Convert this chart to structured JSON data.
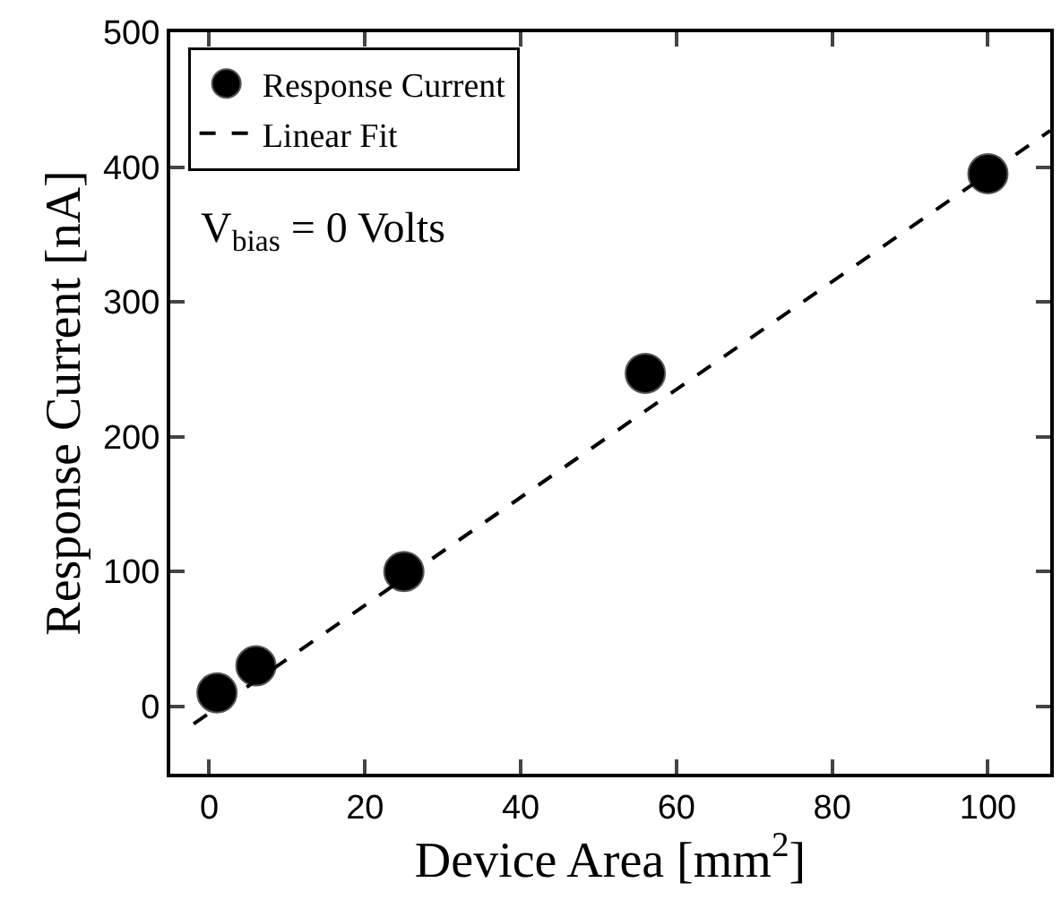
{
  "chart_data": {
    "type": "scatter",
    "xlabel": "Device Area [mm$^{2}$]",
    "ylabel": "Response Current [nA]",
    "xlim": [
      -5,
      108
    ],
    "ylim": [
      -50,
      500
    ],
    "xticks": [
      0,
      20,
      40,
      60,
      80,
      100
    ],
    "yticks": [
      0,
      100,
      200,
      300,
      400,
      500
    ],
    "legend": "top left",
    "series": [
      {
        "name": "Response Current",
        "color": "#000000",
        "marker": "circle",
        "x": [
          1,
          6,
          25,
          56,
          100
        ],
        "values": [
          10,
          30,
          100,
          247,
          395
        ]
      },
      {
        "name": "Linear Fit",
        "color": "#000000",
        "type": "line",
        "line_style": "dashed",
        "x": [
          -2,
          108
        ],
        "values": [
          -13,
          427
        ]
      }
    ],
    "annotations": [
      "V$_{bias}$ = 0 Volts"
    ]
  }
}
